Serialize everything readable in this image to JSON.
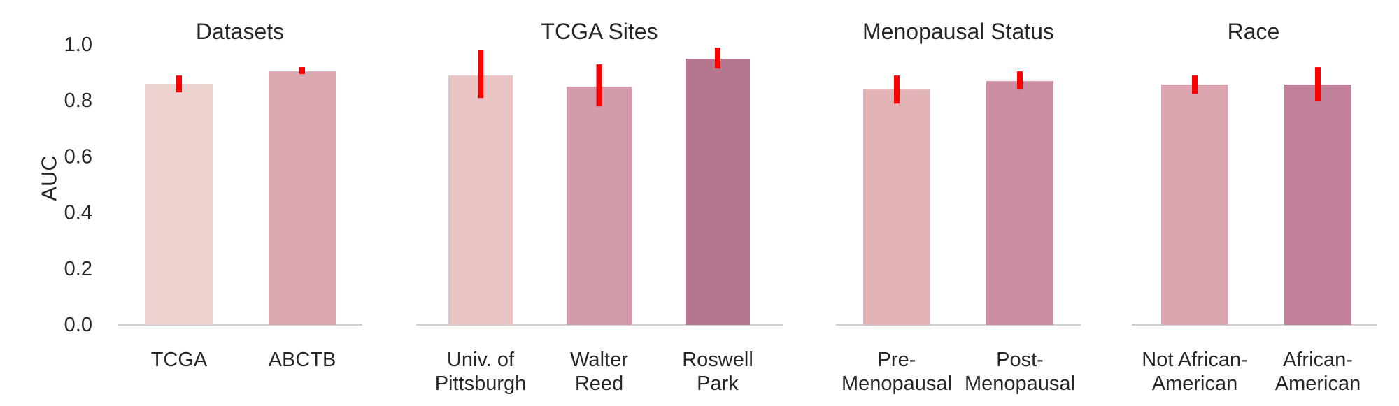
{
  "chart_data": {
    "type": "bar",
    "ylabel": "AUC",
    "ylim": [
      0,
      1.0
    ],
    "yticks": [
      0.0,
      0.2,
      0.4,
      0.6,
      0.8,
      1.0
    ],
    "ytick_labels": [
      "0.0",
      "0.2",
      "0.4",
      "0.6",
      "0.8",
      "1.0"
    ],
    "grid": false,
    "error_color": "#ff0000",
    "panels": [
      {
        "title": "Datasets",
        "bars": [
          {
            "label_lines": [
              "TCGA"
            ],
            "value": 0.86,
            "err_low": 0.83,
            "err_high": 0.89,
            "color": "#ecd2cf"
          },
          {
            "label_lines": [
              "ABCTB"
            ],
            "value": 0.905,
            "err_low": 0.895,
            "err_high": 0.92,
            "color": "#dba8b0"
          }
        ]
      },
      {
        "title": "TCGA Sites",
        "bars": [
          {
            "label_lines": [
              "Univ. of",
              "Pittsburgh"
            ],
            "value": 0.89,
            "err_low": 0.81,
            "err_high": 0.98,
            "color": "#e8c4c3"
          },
          {
            "label_lines": [
              "Walter",
              "Reed"
            ],
            "value": 0.85,
            "err_low": 0.78,
            "err_high": 0.93,
            "color": "#d49ba8"
          },
          {
            "label_lines": [
              "Roswell",
              "Park"
            ],
            "value": 0.95,
            "err_low": 0.915,
            "err_high": 0.99,
            "color": "#b47790"
          }
        ]
      },
      {
        "title": "Menopausal Status",
        "bars": [
          {
            "label_lines": [
              "Pre-",
              "Menopausal"
            ],
            "value": 0.84,
            "err_low": 0.79,
            "err_high": 0.89,
            "color": "#e2b3b7"
          },
          {
            "label_lines": [
              "Post-",
              "Menopausal"
            ],
            "value": 0.87,
            "err_low": 0.84,
            "err_high": 0.905,
            "color": "#cb8da0"
          }
        ]
      },
      {
        "title": "Race",
        "bars": [
          {
            "label_lines": [
              "Not African-",
              "American"
            ],
            "value": 0.858,
            "err_low": 0.825,
            "err_high": 0.89,
            "color": "#daa5ae"
          },
          {
            "label_lines": [
              "African-",
              "American"
            ],
            "value": 0.858,
            "err_low": 0.8,
            "err_high": 0.92,
            "color": "#c18099"
          }
        ]
      }
    ]
  }
}
